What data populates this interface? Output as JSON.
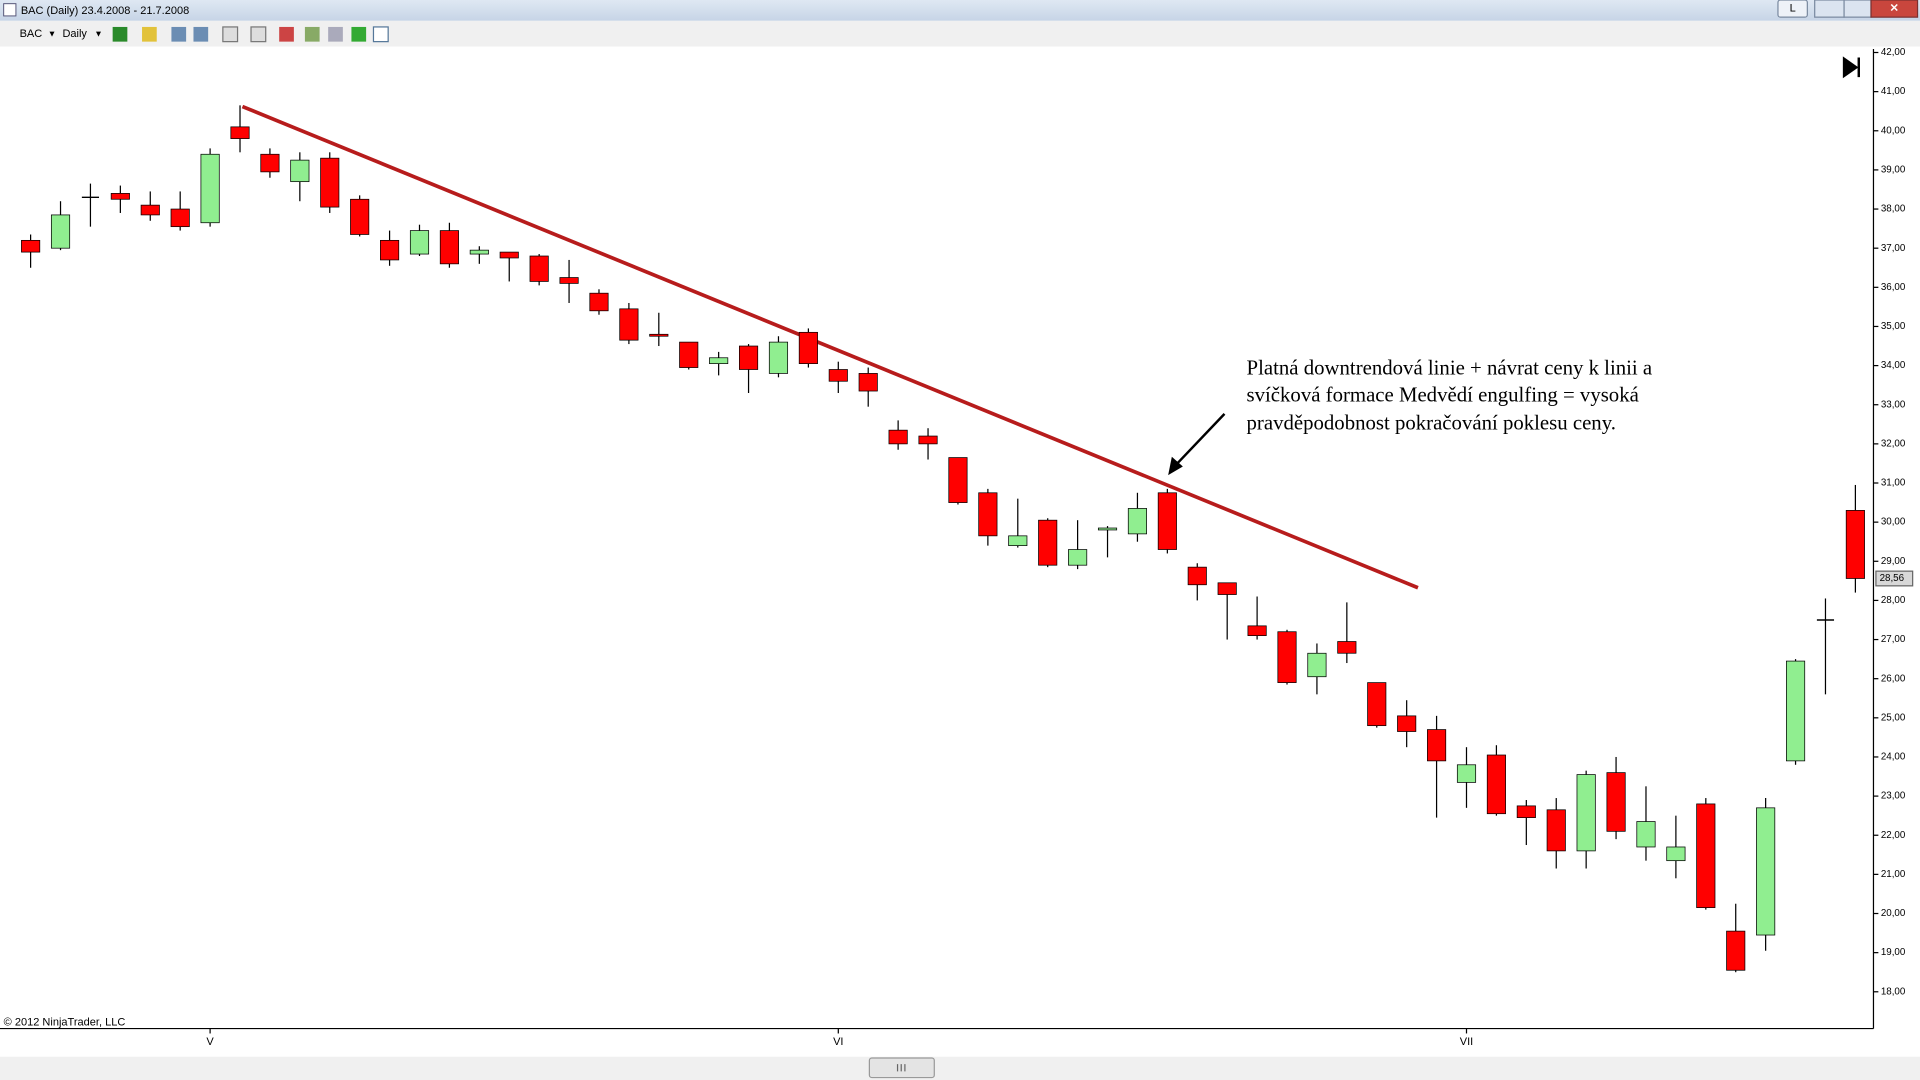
{
  "window": {
    "title": "BAC (Daily)  23.4.2008 - 21.7.2008"
  },
  "toolbar": {
    "instrument": "BAC",
    "interval": "Daily"
  },
  "chart_data": {
    "type": "candlestick",
    "categories": [
      null,
      null,
      null,
      null,
      null,
      null,
      "V",
      null,
      null,
      null,
      null,
      null,
      null,
      null,
      null,
      null,
      null,
      null,
      null,
      null,
      null,
      null,
      null,
      null,
      null,
      null,
      null,
      "VI",
      null,
      null,
      null,
      null,
      null,
      null,
      null,
      null,
      null,
      null,
      null,
      null,
      null,
      null,
      null,
      null,
      null,
      null,
      null,
      null,
      "VII",
      null,
      null,
      null,
      null,
      null,
      null,
      null,
      null,
      null,
      null,
      null,
      null,
      null
    ],
    "open": [
      37.2,
      37.0,
      38.3,
      38.4,
      38.1,
      38.0,
      37.65,
      40.1,
      39.4,
      38.7,
      39.3,
      38.25,
      37.2,
      36.85,
      37.45,
      36.85,
      36.9,
      36.8,
      36.25,
      35.85,
      35.45,
      34.8,
      34.6,
      34.05,
      34.5,
      33.8,
      34.85,
      33.9,
      33.8,
      32.35,
      32.2,
      31.65,
      30.75,
      29.4,
      30.05,
      28.9,
      29.8,
      29.7,
      30.75,
      28.85,
      28.45,
      27.35,
      27.2,
      26.05,
      26.95,
      25.9,
      25.05,
      24.7,
      23.35,
      24.05,
      22.75,
      22.65,
      21.6,
      23.6,
      21.7,
      21.35,
      22.8,
      19.55,
      19.45,
      23.9,
      27.5,
      30.3
    ],
    "high": [
      37.35,
      38.2,
      38.65,
      38.6,
      38.45,
      38.45,
      39.55,
      40.65,
      39.55,
      39.45,
      39.45,
      38.35,
      37.45,
      37.6,
      37.65,
      37.05,
      36.9,
      36.85,
      36.7,
      35.95,
      35.6,
      35.35,
      34.6,
      34.35,
      34.55,
      34.75,
      34.95,
      34.1,
      33.95,
      32.6,
      32.4,
      31.65,
      30.85,
      30.6,
      30.1,
      30.05,
      29.9,
      30.75,
      30.85,
      28.95,
      28.45,
      28.1,
      27.25,
      26.9,
      27.95,
      25.9,
      25.45,
      25.05,
      24.25,
      24.3,
      22.9,
      22.95,
      23.65,
      24.0,
      23.25,
      22.5,
      22.95,
      20.25,
      22.95,
      26.5,
      28.05,
      30.95
    ],
    "low": [
      36.5,
      36.95,
      37.55,
      37.9,
      37.7,
      37.45,
      37.55,
      39.45,
      38.8,
      38.2,
      37.9,
      37.3,
      36.55,
      36.8,
      36.5,
      36.6,
      36.15,
      36.05,
      35.6,
      35.3,
      34.55,
      34.5,
      33.9,
      33.75,
      33.3,
      33.7,
      33.95,
      33.3,
      32.95,
      31.85,
      31.6,
      30.45,
      29.4,
      29.35,
      28.85,
      28.8,
      29.1,
      29.5,
      29.2,
      28.0,
      27.0,
      27.0,
      25.85,
      25.6,
      26.4,
      24.75,
      24.25,
      22.45,
      22.7,
      22.5,
      21.75,
      21.15,
      21.15,
      21.9,
      21.35,
      20.9,
      20.1,
      18.5,
      19.05,
      23.8,
      25.6,
      28.2
    ],
    "close": [
      36.9,
      37.85,
      38.3,
      38.25,
      37.85,
      37.55,
      39.4,
      39.8,
      38.95,
      39.25,
      38.05,
      37.35,
      36.7,
      37.45,
      36.6,
      36.95,
      36.75,
      36.15,
      36.1,
      35.4,
      34.65,
      34.75,
      33.95,
      34.2,
      33.9,
      34.6,
      34.05,
      33.6,
      33.35,
      32.0,
      32.0,
      30.5,
      29.65,
      29.65,
      28.9,
      29.3,
      29.85,
      30.35,
      29.3,
      28.4,
      28.15,
      27.1,
      25.9,
      26.65,
      26.65,
      24.8,
      24.65,
      23.9,
      23.8,
      22.55,
      22.45,
      21.6,
      23.55,
      22.1,
      22.35,
      21.7,
      20.15,
      18.55,
      22.7,
      26.45,
      27.5,
      28.56
    ],
    "last_close_label": "28,56",
    "up_color": "#90ee90",
    "down_color": "#ff0000",
    "ylim": [
      17.06,
      42.09
    ],
    "yticks": [
      {
        "value": 42,
        "label": "42,00"
      },
      {
        "value": 41,
        "label": "41,00"
      },
      {
        "value": 40,
        "label": "40,00"
      },
      {
        "value": 39,
        "label": "39,00"
      },
      {
        "value": 38,
        "label": "38,00"
      },
      {
        "value": 37,
        "label": "37,00"
      },
      {
        "value": 36,
        "label": "36,00"
      },
      {
        "value": 35,
        "label": "35,00"
      },
      {
        "value": 34,
        "label": "34,00"
      },
      {
        "value": 33,
        "label": "33,00"
      },
      {
        "value": 32,
        "label": "32,00"
      },
      {
        "value": 31,
        "label": "31,00"
      },
      {
        "value": 30,
        "label": "30,00"
      },
      {
        "value": 29,
        "label": "29,00"
      },
      {
        "value": 28,
        "label": "28,00"
      },
      {
        "value": 27,
        "label": "27,00"
      },
      {
        "value": 26,
        "label": "26,00"
      },
      {
        "value": 25,
        "label": "25,00"
      },
      {
        "value": 24,
        "label": "24,00"
      },
      {
        "value": 23,
        "label": "23,00"
      },
      {
        "value": 22,
        "label": "22,00"
      },
      {
        "value": 21,
        "label": "21,00"
      },
      {
        "value": 20,
        "label": "20,00"
      },
      {
        "value": 19,
        "label": "19,00"
      },
      {
        "value": 18,
        "label": "18,00"
      }
    ],
    "annotation": [
      "Platná downtrendová linie + návrat ceny k linii a",
      "svíčková formace Medvědí engulfing = vysoká",
      "pravděpodobnost pokračování poklesu ceny."
    ],
    "copyright": "© 2012 NinjaTrader, LLC"
  }
}
